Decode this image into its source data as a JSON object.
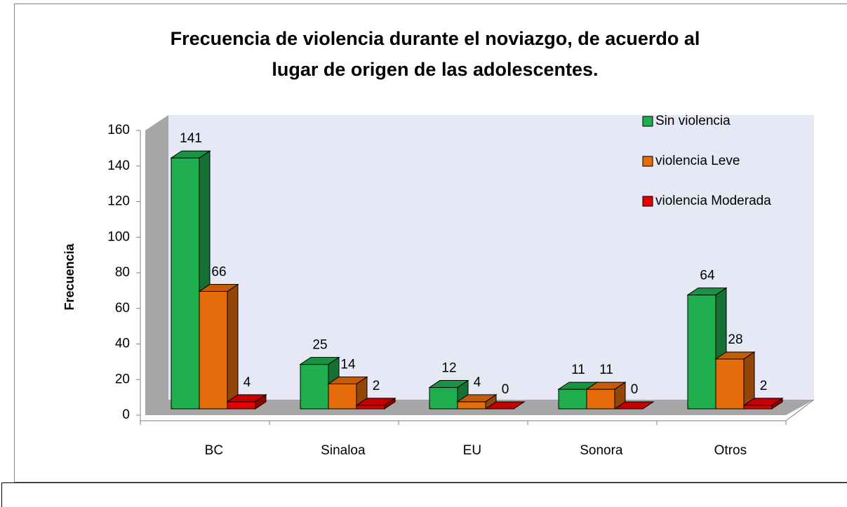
{
  "chart_data": {
    "type": "bar3d",
    "title": [
      "Frecuencia de violencia durante el noviazgo, de acuerdo al",
      "lugar de origen de las adolescentes."
    ],
    "ylabel": "Frecuencia",
    "categories": [
      "BC",
      "Sinaloa",
      "EU",
      "Sonora",
      "Otros"
    ],
    "series": [
      {
        "name": "Sin violencia",
        "color": "#1fae4f",
        "values": [
          141,
          25,
          12,
          11,
          64
        ]
      },
      {
        "name": "violencia Leve",
        "color": "#e46c0a",
        "values": [
          66,
          14,
          4,
          11,
          28
        ]
      },
      {
        "name": "violencia Moderada",
        "color": "#e60000",
        "values": [
          4,
          2,
          0,
          0,
          2
        ]
      }
    ],
    "ylim": [
      0,
      160
    ],
    "yticks": [
      0,
      20,
      40,
      60,
      80,
      100,
      120,
      140,
      160
    ],
    "legend": "upper right"
  }
}
